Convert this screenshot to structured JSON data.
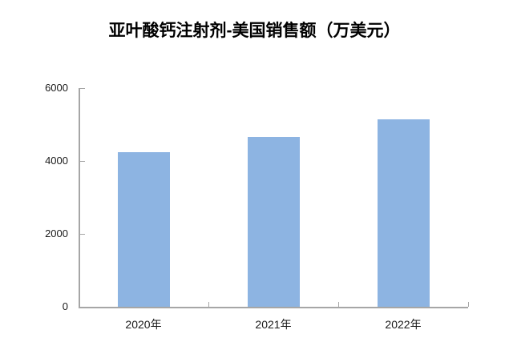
{
  "chart_data": {
    "type": "bar",
    "title": "亚叶酸钙注射剂-美国销售额（万美元）",
    "categories": [
      "2020年",
      "2021年",
      "2022年"
    ],
    "values": [
      4250,
      4650,
      5150
    ],
    "yticks": [
      0,
      2000,
      4000,
      6000
    ],
    "ylim": [
      0,
      6000
    ],
    "xlabel": "",
    "ylabel": "",
    "grid": false,
    "legend": false,
    "bar_color": "#8DB4E2",
    "axis_color": "#A6A6A6",
    "title_color": "#000000",
    "tick_label_color": "#1A1A1A"
  }
}
